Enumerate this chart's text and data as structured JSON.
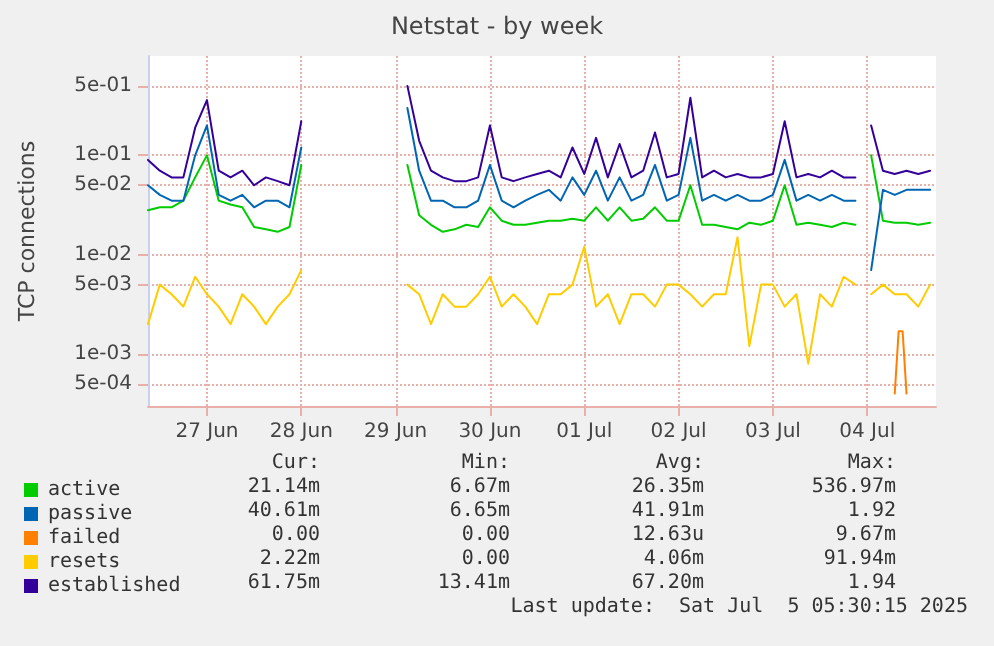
{
  "chart_data": {
    "type": "line",
    "title": "Netstat - by week",
    "ylabel": "TCP connections",
    "log": "y",
    "grid": true,
    "legend": "bottom left",
    "marker": "none",
    "line_style": "solid",
    "ylim": [
      0.0003,
      1
    ],
    "yticks": [
      {
        "value": 0.0005,
        "label": "5e-04"
      },
      {
        "value": 0.001,
        "label": "1e-03"
      },
      {
        "value": 0.005,
        "label": "5e-03"
      },
      {
        "value": 0.01,
        "label": "1e-02"
      },
      {
        "value": 0.05,
        "label": "5e-02"
      },
      {
        "value": 0.1,
        "label": "1e-01"
      },
      {
        "value": 0.5,
        "label": "5e-01"
      }
    ],
    "xlim": [
      "2025-06-26T09:00",
      "2025-07-04T17:30"
    ],
    "xticks": [
      {
        "value": "2025-06-27T00:00",
        "label": "27 Jun"
      },
      {
        "value": "2025-06-28T00:00",
        "label": "28 Jun"
      },
      {
        "value": "2025-06-29T00:00",
        "label": "29 Jun"
      },
      {
        "value": "2025-06-30T00:00",
        "label": "30 Jun"
      },
      {
        "value": "2025-07-01T00:00",
        "label": "01 Jul"
      },
      {
        "value": "2025-07-02T00:00",
        "label": "02 Jul"
      },
      {
        "value": "2025-07-03T00:00",
        "label": "03 Jul"
      },
      {
        "value": "2025-07-04T00:00",
        "label": "04 Jul"
      }
    ],
    "x": [
      "2025-06-26T09:00",
      "2025-06-26T12:00",
      "2025-06-26T15:00",
      "2025-06-26T18:00",
      "2025-06-26T21:00",
      "2025-06-27T00:00",
      "2025-06-27T03:00",
      "2025-06-27T06:00",
      "2025-06-27T09:00",
      "2025-06-27T12:00",
      "2025-06-27T15:00",
      "2025-06-27T18:00",
      "2025-06-27T21:00",
      "2025-06-28T00:00",
      "2025-06-28T03:00",
      "2025-06-29T03:00",
      "2025-06-29T06:00",
      "2025-06-29T09:00",
      "2025-06-29T12:00",
      "2025-06-29T15:00",
      "2025-06-29T18:00",
      "2025-06-29T21:00",
      "2025-06-30T00:00",
      "2025-06-30T03:00",
      "2025-06-30T06:00",
      "2025-06-30T09:00",
      "2025-06-30T12:00",
      "2025-06-30T15:00",
      "2025-06-30T18:00",
      "2025-06-30T21:00",
      "2025-07-01T00:00",
      "2025-07-01T03:00",
      "2025-07-01T06:00",
      "2025-07-01T09:00",
      "2025-07-01T12:00",
      "2025-07-01T15:00",
      "2025-07-01T18:00",
      "2025-07-01T21:00",
      "2025-07-02T00:00",
      "2025-07-02T03:00",
      "2025-07-02T06:00",
      "2025-07-02T09:00",
      "2025-07-02T12:00",
      "2025-07-02T15:00",
      "2025-07-02T18:00",
      "2025-07-02T21:00",
      "2025-07-03T00:00",
      "2025-07-03T03:00",
      "2025-07-03T06:00",
      "2025-07-03T09:00",
      "2025-07-03T12:00",
      "2025-07-03T15:00",
      "2025-07-03T18:00",
      "2025-07-03T21:00",
      "2025-07-04T00:00",
      "2025-07-04T01:00",
      "2025-07-04T04:00",
      "2025-07-04T07:00",
      "2025-07-04T10:00",
      "2025-07-04T13:00",
      "2025-07-04T16:00"
    ],
    "series": [
      {
        "name": "active",
        "color": "#00cc00",
        "values": [
          0.028,
          0.03,
          0.03,
          0.035,
          0.06,
          0.1,
          0.035,
          0.032,
          0.03,
          0.019,
          0.018,
          0.017,
          0.019,
          0.08,
          null,
          0.08,
          0.025,
          0.02,
          0.017,
          0.018,
          0.02,
          0.019,
          0.03,
          0.022,
          0.02,
          0.02,
          0.021,
          0.022,
          0.022,
          0.023,
          0.022,
          0.03,
          0.022,
          0.03,
          0.022,
          0.023,
          0.03,
          0.022,
          0.022,
          0.05,
          0.02,
          0.02,
          0.019,
          0.018,
          0.021,
          0.02,
          0.022,
          0.05,
          0.02,
          0.021,
          0.02,
          0.019,
          0.021,
          0.02,
          null,
          0.1,
          0.022,
          0.021,
          0.021,
          0.02,
          0.021
        ]
      },
      {
        "name": "passive",
        "color": "#0066b3",
        "values": [
          0.05,
          0.04,
          0.035,
          0.035,
          0.1,
          0.2,
          0.04,
          0.035,
          0.04,
          0.03,
          0.035,
          0.035,
          0.03,
          0.12,
          null,
          0.3,
          0.07,
          0.035,
          0.035,
          0.03,
          0.03,
          0.035,
          0.08,
          0.035,
          0.03,
          0.035,
          0.04,
          0.045,
          0.035,
          0.06,
          0.04,
          0.07,
          0.035,
          0.06,
          0.035,
          0.04,
          0.08,
          0.035,
          0.04,
          0.15,
          0.035,
          0.04,
          0.035,
          0.04,
          0.035,
          0.035,
          0.04,
          0.09,
          0.035,
          0.04,
          0.035,
          0.04,
          0.035,
          0.035,
          null,
          0.007,
          0.045,
          0.04,
          0.045,
          0.045,
          0.045
        ]
      },
      {
        "name": "failed",
        "color": "#ff8000",
        "x": [
          "2025-07-04T07:00",
          "2025-07-04T08:00",
          "2025-07-04T09:00",
          "2025-07-04T10:00"
        ],
        "values": [
          0.0004,
          0.0017,
          0.0017,
          0.0004
        ]
      },
      {
        "name": "resets",
        "color": "#ffcc00",
        "values": [
          0.002,
          0.005,
          0.004,
          0.003,
          0.006,
          0.004,
          0.003,
          0.002,
          0.004,
          0.003,
          0.002,
          0.003,
          0.004,
          0.007,
          null,
          0.005,
          0.004,
          0.002,
          0.004,
          0.003,
          0.003,
          0.004,
          0.006,
          0.003,
          0.004,
          0.003,
          0.002,
          0.004,
          0.004,
          0.005,
          0.012,
          0.003,
          0.004,
          0.002,
          0.004,
          0.004,
          0.003,
          0.005,
          0.005,
          0.004,
          0.003,
          0.004,
          0.004,
          0.015,
          0.0012,
          0.005,
          0.005,
          0.003,
          0.004,
          0.0008,
          0.004,
          0.003,
          0.006,
          0.005,
          null,
          0.004,
          0.005,
          0.004,
          0.004,
          0.003,
          0.005
        ]
      },
      {
        "name": "established",
        "color": "#330099",
        "values": [
          0.09,
          0.07,
          0.06,
          0.06,
          0.19,
          0.36,
          0.07,
          0.06,
          0.07,
          0.05,
          0.06,
          0.055,
          0.05,
          0.22,
          null,
          0.5,
          0.14,
          0.07,
          0.06,
          0.055,
          0.055,
          0.06,
          0.2,
          0.06,
          0.055,
          0.06,
          0.065,
          0.07,
          0.06,
          0.12,
          0.065,
          0.15,
          0.06,
          0.13,
          0.06,
          0.07,
          0.17,
          0.06,
          0.065,
          0.38,
          0.06,
          0.07,
          0.06,
          0.065,
          0.06,
          0.06,
          0.065,
          0.22,
          0.06,
          0.065,
          0.06,
          0.07,
          0.06,
          0.06,
          null,
          0.2,
          0.07,
          0.065,
          0.07,
          0.065,
          0.07
        ]
      }
    ],
    "annotations": [
      "Cur:",
      "Min:",
      "Avg:",
      "Max:",
      "21.14m",
      "6.67m",
      "26.35m",
      "536.97m",
      "40.61m",
      "6.65m",
      "41.91m",
      "1.92",
      "0.00",
      "0.00",
      "12.63u",
      "9.67m",
      "2.22m",
      "0.00",
      "4.06m",
      "91.94m",
      "61.75m",
      "13.41m",
      "67.20m",
      "1.94",
      "Last update:  Sat Jul  5 05:30:15 2025"
    ]
  }
}
